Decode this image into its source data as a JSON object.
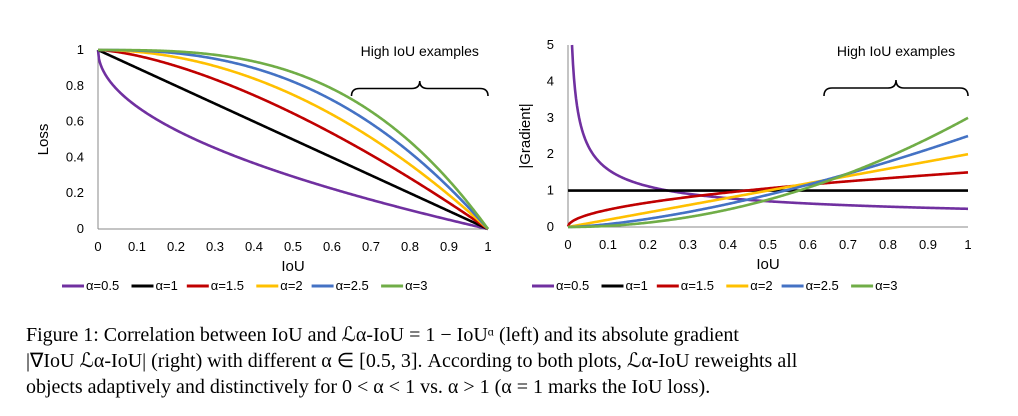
{
  "chart_data": [
    {
      "type": "line",
      "title": "",
      "xlabel": "IoU",
      "ylabel": "Loss",
      "xlim": [
        0,
        1
      ],
      "ylim": [
        0,
        1
      ],
      "x_ticks": [
        "0",
        "0.1",
        "0.2",
        "0.3",
        "0.4",
        "0.5",
        "0.6",
        "0.7",
        "0.8",
        "0.9",
        "1"
      ],
      "y_ticks": [
        "0",
        "0.2",
        "0.4",
        "0.6",
        "0.8",
        "1"
      ],
      "function": "1 - IoU^alpha",
      "alphas": [
        0.5,
        1,
        1.5,
        2,
        2.5,
        3
      ],
      "series": [
        {
          "name": "α=0.5",
          "alpha": 0.5,
          "color": "#7030A0"
        },
        {
          "name": "α=1",
          "alpha": 1,
          "color": "#000000"
        },
        {
          "name": "α=1.5",
          "alpha": 1.5,
          "color": "#C00000"
        },
        {
          "name": "α=2",
          "alpha": 2,
          "color": "#FFC000"
        },
        {
          "name": "α=2.5",
          "alpha": 2.5,
          "color": "#4472C4"
        },
        {
          "name": "α=3",
          "alpha": 3,
          "color": "#70AD47"
        }
      ],
      "annotation": {
        "text": "High IoU examples",
        "x_range": [
          0.65,
          1.0
        ]
      }
    },
    {
      "type": "line",
      "title": "",
      "xlabel": "IoU",
      "ylabel": "|Gradient|",
      "xlim": [
        0,
        1
      ],
      "ylim": [
        0,
        5
      ],
      "x_ticks": [
        "0",
        "0.1",
        "0.2",
        "0.3",
        "0.4",
        "0.5",
        "0.6",
        "0.7",
        "0.8",
        "0.9",
        "1"
      ],
      "y_ticks": [
        "0",
        "1",
        "2",
        "3",
        "4",
        "5"
      ],
      "function": "alpha * IoU^(alpha-1)",
      "alphas": [
        0.5,
        1,
        1.5,
        2,
        2.5,
        3
      ],
      "series": [
        {
          "name": "α=0.5",
          "alpha": 0.5,
          "color": "#7030A0"
        },
        {
          "name": "α=1",
          "alpha": 1,
          "color": "#000000"
        },
        {
          "name": "α=1.5",
          "alpha": 1.5,
          "color": "#C00000"
        },
        {
          "name": "α=2",
          "alpha": 2,
          "color": "#FFC000"
        },
        {
          "name": "α=2.5",
          "alpha": 2.5,
          "color": "#4472C4"
        },
        {
          "name": "α=3",
          "alpha": 3,
          "color": "#70AD47"
        }
      ],
      "annotation": {
        "text": "High IoU examples",
        "x_range": [
          0.64,
          1.0
        ]
      }
    }
  ],
  "caption": {
    "line1": "Figure 1: Correlation between IoU and ℒα-IoU = 1 − IoUᵅ (left) and its absolute gradient",
    "line2": "|∇IoU ℒα-IoU| (right) with different α ∈ [0.5, 3]. According to both plots, ℒα-IoU reweights all",
    "line3": "objects adaptively and distinctively for 0 < α < 1 vs. α > 1 (α = 1 marks the IoU loss)."
  }
}
